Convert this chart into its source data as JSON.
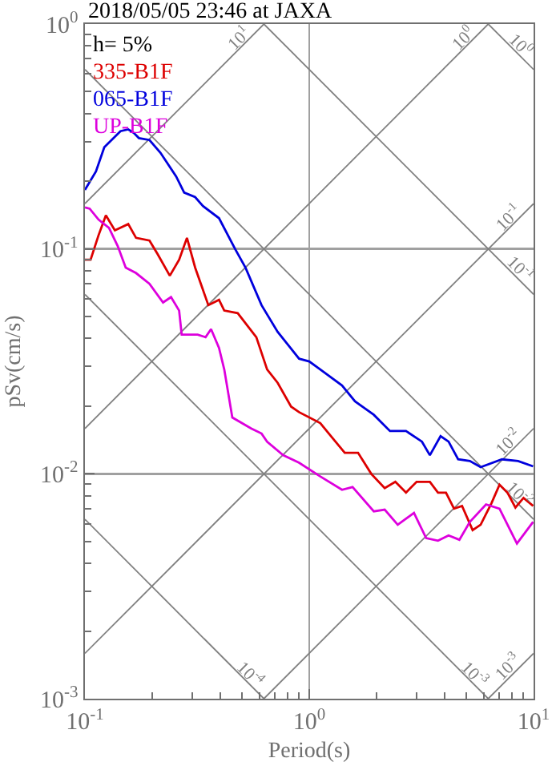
{
  "chart_data": {
    "type": "line",
    "title": "2018/05/05 23:46 at JAXA",
    "xlabel": "Period(s)",
    "ylabel": "pSv(cm/s)",
    "legend_title": "h= 5%",
    "legend": "top left",
    "log": "xy",
    "grid": true,
    "xlim": [
      0.1,
      10
    ],
    "ylim": [
      0.001,
      1
    ],
    "xticks": [
      {
        "value": 0.1,
        "label": "10$^{-1}$"
      },
      {
        "value": 1,
        "label": "10$^{0}$"
      },
      {
        "value": 10,
        "label": "10$^{1}$"
      }
    ],
    "yticks": [
      {
        "value": 0.001,
        "label": "10$^{-3}$"
      },
      {
        "value": 0.01,
        "label": "10$^{-2}$"
      },
      {
        "value": 0.1,
        "label": "10$^{-1}$"
      },
      {
        "value": 1,
        "label": "10$^{0}$"
      }
    ],
    "series": [
      {
        "name": "10$^{1}$",
        "color": "#808080",
        "x": [
          0.1,
          0.628
        ],
        "values": [
          0.159,
          1
        ]
      },
      {
        "name": "10$^{0}$",
        "color": "#808080",
        "x": [
          0.1,
          6.28
        ],
        "values": [
          0.0159,
          1
        ]
      },
      {
        "name": "10$^{-1}$",
        "color": "#808080",
        "x": [
          0.1,
          10
        ],
        "values": [
          0.00159,
          0.159
        ]
      },
      {
        "name": "10$^{-2}$",
        "color": "#808080",
        "x": [
          0.628,
          10
        ],
        "values": [
          0.001,
          0.0159
        ]
      },
      {
        "name": "10$^{-3}$",
        "color": "#808080",
        "x": [
          6.28,
          10
        ],
        "values": [
          0.001,
          0.00159
        ]
      },
      {
        "name": "10$^{0}$",
        "color": "#808080",
        "x": [
          6.28,
          10
        ],
        "values": [
          1,
          0.628
        ]
      },
      {
        "name": "10$^{-1}$",
        "color": "#808080",
        "x": [
          0.628,
          10
        ],
        "values": [
          1,
          0.0628
        ]
      },
      {
        "name": "10$^{-2}$",
        "color": "#808080",
        "x": [
          0.1,
          10
        ],
        "values": [
          0.628,
          0.00628
        ]
      },
      {
        "name": "10$^{-3}$",
        "color": "#808080",
        "x": [
          0.1,
          6.28
        ],
        "values": [
          0.0628,
          0.001
        ]
      },
      {
        "name": "10$^{-4}$",
        "color": "#808080",
        "x": [
          0.1,
          0.628
        ],
        "values": [
          0.00628,
          0.001
        ]
      },
      {
        "name": "335-B1F",
        "color": "#dd0000",
        "x": [
          0.1,
          0.106,
          0.115,
          0.124,
          0.136,
          0.156,
          0.169,
          0.194,
          0.211,
          0.239,
          0.263,
          0.285,
          0.31,
          0.355,
          0.396,
          0.418,
          0.48,
          0.581,
          0.649,
          0.723,
          0.83,
          0.901,
          1.12,
          1.25,
          1.44,
          1.65,
          1.89,
          2.17,
          2.42,
          2.7,
          3.01,
          3.45,
          3.75,
          4.07,
          4.42,
          4.8,
          5.35,
          5.81,
          6.49,
          7.05,
          7.65,
          8.3,
          9.02,
          9.95
        ],
        "values": [
          0.0895,
          0.0895,
          0.115,
          0.141,
          0.121,
          0.129,
          0.112,
          0.109,
          0.0947,
          0.076,
          0.0895,
          0.112,
          0.0826,
          0.0562,
          0.0594,
          0.0532,
          0.0518,
          0.0405,
          0.0291,
          0.0254,
          0.0199,
          0.0188,
          0.0168,
          0.0147,
          0.0124,
          0.0124,
          0.01,
          0.00863,
          0.00921,
          0.00825,
          0.00921,
          0.00921,
          0.00825,
          0.00825,
          0.007,
          0.0072,
          0.00562,
          0.00594,
          0.0074,
          0.00895,
          0.00825,
          0.00708,
          0.00781,
          0.0072
        ]
      },
      {
        "name": "065-B1F",
        "color": "#0000dd",
        "x": [
          0.1,
          0.112,
          0.122,
          0.132,
          0.144,
          0.156,
          0.165,
          0.174,
          0.194,
          0.217,
          0.255,
          0.277,
          0.31,
          0.336,
          0.396,
          0.467,
          0.52,
          0.613,
          0.723,
          0.807,
          0.901,
          1.0,
          1.12,
          1.4,
          1.6,
          1.94,
          2.29,
          2.7,
          3.18,
          3.45,
          3.85,
          4.18,
          4.61,
          5.2,
          5.81,
          7.23,
          8.53,
          9.95
        ],
        "values": [
          0.183,
          0.221,
          0.283,
          0.306,
          0.334,
          0.34,
          0.328,
          0.311,
          0.305,
          0.268,
          0.21,
          0.178,
          0.17,
          0.155,
          0.137,
          0.1,
          0.0825,
          0.0562,
          0.0428,
          0.0373,
          0.0325,
          0.0316,
          0.0291,
          0.0247,
          0.021,
          0.0183,
          0.0155,
          0.0155,
          0.0139,
          0.0121,
          0.0147,
          0.0139,
          0.0116,
          0.0114,
          0.0107,
          0.0116,
          0.0114,
          0.0108
        ]
      },
      {
        "name": "UP-B1F",
        "color": "#dd00dd",
        "x": [
          0.1,
          0.105,
          0.115,
          0.128,
          0.14,
          0.152,
          0.169,
          0.194,
          0.223,
          0.242,
          0.263,
          0.27,
          0.318,
          0.345,
          0.365,
          0.396,
          0.418,
          0.454,
          0.551,
          0.613,
          0.649,
          0.765,
          0.901,
          1.12,
          1.4,
          1.56,
          1.94,
          2.17,
          2.48,
          2.93,
          3.32,
          3.75,
          4.18,
          4.67,
          5.2,
          6.14,
          7.05,
          8.43,
          9.95
        ],
        "values": [
          0.153,
          0.151,
          0.135,
          0.124,
          0.103,
          0.0826,
          0.0781,
          0.07,
          0.0578,
          0.0611,
          0.0532,
          0.0416,
          0.0416,
          0.0405,
          0.044,
          0.0363,
          0.0291,
          0.0178,
          0.0159,
          0.0151,
          0.0139,
          0.0121,
          0.0112,
          0.00973,
          0.00849,
          0.00873,
          0.00681,
          0.00693,
          0.00594,
          0.0067,
          0.00518,
          0.00504,
          0.00532,
          0.00509,
          0.00611,
          0.00731,
          0.007,
          0.0049,
          0.00611
        ]
      }
    ]
  }
}
